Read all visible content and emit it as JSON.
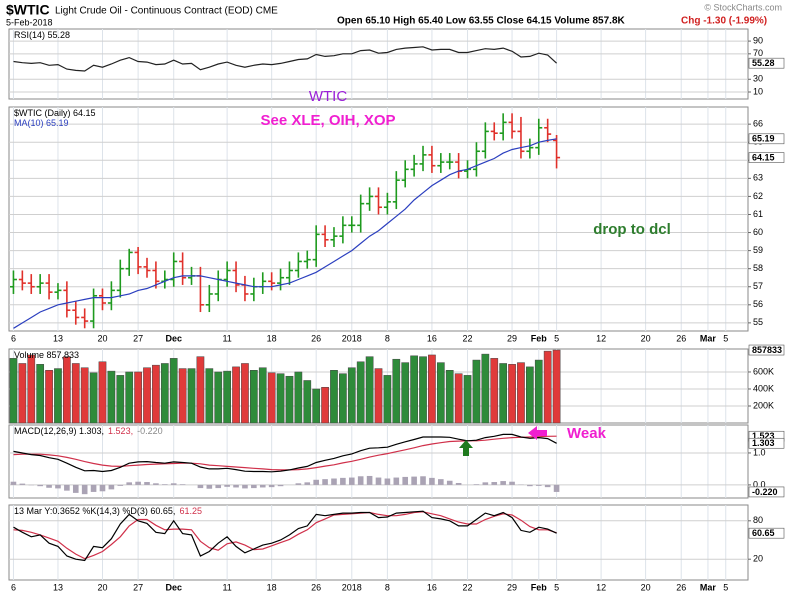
{
  "header": {
    "symbol": "$WTIC",
    "name": "Light Crude Oil - Continuous Contract (EOD) CME",
    "date": "5-Feb-2018",
    "quote": "Open 65.10  High 65.40  Low 63.55  Close 64.15  Volume 857.8K",
    "change": "Chg -1.30 (-1.99%)",
    "credit": "© StockCharts.com"
  },
  "annotations": {
    "title": "WTIC",
    "note": "See XLE, OIH, XOP",
    "comment": "drop to dcl",
    "macd_note": "Weak"
  },
  "chart_data": [
    {
      "type": "line",
      "legend": [
        {
          "text": "RSI(14) 55.28",
          "color": "#000"
        }
      ],
      "xlim": [
        -0.5,
        82.5
      ],
      "ylim": [
        -1,
        109
      ],
      "yticks": [
        10,
        30,
        70,
        90
      ],
      "tags": [
        55.28
      ],
      "series": [
        {
          "color": "#222",
          "values": [
            58,
            56,
            55,
            56,
            52,
            53,
            46,
            44,
            43,
            52,
            49,
            54,
            60,
            64,
            58,
            57,
            53,
            54,
            60,
            54,
            55,
            45,
            49,
            54,
            57,
            52,
            49,
            52,
            54,
            53,
            55,
            58,
            61,
            62,
            69,
            66,
            67,
            70,
            70,
            75,
            76,
            71,
            72,
            77,
            79,
            80,
            81,
            76,
            77,
            77,
            72,
            72,
            75,
            78,
            77,
            79,
            74,
            65,
            66,
            71,
            68,
            55.28
          ]
        }
      ]
    },
    {
      "type": "ohlc",
      "legend": [
        {
          "text": "$WTIC (Daily) 64.15",
          "color": "#000"
        },
        {
          "text": "MA(10) 65.19",
          "color": "#2b3fbf"
        }
      ],
      "xlim": [
        -0.5,
        82.5
      ],
      "ylim": [
        54.55,
        66.95
      ],
      "yticks": [
        55,
        56,
        57,
        58,
        59,
        60,
        61,
        62,
        63,
        64,
        65,
        66
      ],
      "tags": [
        65.19,
        64.15
      ],
      "up_color": "#1e9a1e",
      "down_color": "#e0302a",
      "xticks": [
        {
          "value": 0,
          "label": "6"
        },
        {
          "value": 5,
          "label": "13"
        },
        {
          "value": 10,
          "label": "20"
        },
        {
          "value": 14,
          "label": "27"
        },
        {
          "value": 18,
          "label": "Dec"
        },
        {
          "value": 24,
          "label": "11"
        },
        {
          "value": 29,
          "label": "18"
        },
        {
          "value": 34,
          "label": "26"
        },
        {
          "value": 38,
          "label": "2018"
        },
        {
          "value": 42,
          "label": "8"
        },
        {
          "value": 47,
          "label": "16"
        },
        {
          "value": 51,
          "label": "22"
        },
        {
          "value": 56,
          "label": "29"
        },
        {
          "value": 59,
          "label": "Feb"
        },
        {
          "value": 61,
          "label": "5"
        },
        {
          "value": 66,
          "label": "12"
        },
        {
          "value": 71,
          "label": "20"
        },
        {
          "value": 75,
          "label": "26"
        },
        {
          "value": 78,
          "label": "Mar"
        },
        {
          "value": 80,
          "label": "5"
        }
      ],
      "open": [
        57.0,
        57.4,
        57.2,
        57.0,
        57.2,
        56.7,
        56.8,
        55.7,
        55.3,
        55.1,
        56.5,
        56.1,
        56.8,
        58.0,
        58.9,
        58.1,
        57.9,
        57.3,
        57.4,
        58.4,
        57.5,
        57.6,
        56.0,
        56.6,
        57.4,
        57.9,
        57.1,
        56.6,
        57.0,
        57.3,
        57.2,
        57.5,
        57.9,
        58.4,
        58.5,
        59.9,
        59.6,
        59.8,
        60.4,
        60.4,
        61.6,
        62.0,
        61.4,
        61.7,
        62.9,
        63.5,
        63.8,
        64.3,
        63.7,
        63.9,
        63.9,
        63.4,
        63.5,
        64.5,
        65.6,
        65.5,
        66.1,
        65.6,
        64.5,
        64.7,
        65.8,
        65.1
      ],
      "high": [
        57.9,
        57.9,
        57.7,
        57.7,
        57.7,
        57.2,
        57.3,
        56.2,
        55.8,
        56.9,
        56.9,
        57.3,
        58.5,
        59.1,
        59.2,
        58.6,
        58.4,
        57.9,
        58.9,
        58.9,
        58.1,
        58.1,
        57.1,
        57.9,
        58.4,
        58.4,
        57.6,
        57.5,
        57.8,
        57.8,
        58.0,
        58.4,
        58.9,
        59.0,
        60.4,
        60.4,
        60.3,
        60.9,
        60.9,
        62.1,
        62.5,
        62.5,
        62.2,
        63.4,
        64.0,
        64.3,
        64.8,
        64.8,
        64.4,
        64.4,
        64.4,
        64.0,
        65.0,
        66.1,
        66.1,
        66.6,
        66.6,
        66.4,
        65.2,
        66.3,
        66.3,
        65.4
      ],
      "low": [
        56.6,
        56.8,
        56.6,
        56.6,
        56.3,
        56.3,
        55.3,
        54.9,
        54.7,
        54.7,
        55.7,
        55.7,
        56.4,
        57.6,
        57.7,
        57.5,
        56.9,
        56.9,
        57.0,
        57.1,
        57.1,
        55.6,
        55.6,
        56.2,
        57.0,
        56.7,
        56.2,
        56.2,
        56.6,
        56.8,
        56.8,
        57.1,
        57.5,
        58.0,
        58.1,
        59.2,
        59.2,
        59.4,
        60.0,
        60.0,
        61.2,
        61.0,
        61.0,
        61.3,
        62.5,
        63.1,
        63.4,
        63.3,
        63.3,
        63.5,
        63.0,
        63.0,
        63.1,
        64.1,
        65.1,
        65.1,
        65.2,
        64.1,
        64.1,
        64.3,
        65.0,
        63.55
      ],
      "close": [
        57.4,
        57.2,
        57.0,
        57.2,
        56.7,
        56.8,
        55.7,
        55.3,
        55.1,
        56.5,
        56.1,
        56.8,
        58.0,
        58.9,
        58.1,
        57.9,
        57.3,
        57.4,
        58.4,
        57.5,
        57.6,
        56.0,
        56.6,
        57.4,
        57.9,
        57.1,
        56.6,
        57.0,
        57.3,
        57.2,
        57.5,
        57.9,
        58.4,
        58.5,
        59.9,
        59.6,
        59.8,
        60.4,
        60.4,
        61.6,
        62.0,
        61.4,
        61.7,
        62.9,
        63.5,
        63.8,
        64.3,
        63.7,
        63.9,
        63.9,
        63.4,
        63.5,
        64.5,
        65.6,
        65.5,
        66.1,
        65.6,
        64.5,
        64.7,
        65.8,
        65.45,
        64.15
      ],
      "series": [
        {
          "color": "#2b3fbf",
          "values": [
            54.7,
            55.0,
            55.3,
            55.6,
            55.8,
            56.0,
            56.1,
            56.2,
            56.3,
            56.4,
            56.4,
            56.4,
            56.5,
            56.6,
            56.8,
            56.9,
            57.1,
            57.3,
            57.5,
            57.6,
            57.6,
            57.6,
            57.5,
            57.4,
            57.3,
            57.2,
            57.1,
            57.0,
            57.0,
            57.0,
            57.1,
            57.2,
            57.4,
            57.6,
            57.8,
            58.1,
            58.4,
            58.7,
            59.0,
            59.4,
            59.8,
            60.1,
            60.5,
            60.9,
            61.3,
            61.8,
            62.2,
            62.6,
            62.9,
            63.2,
            63.4,
            63.5,
            63.7,
            63.9,
            64.1,
            64.4,
            64.6,
            64.7,
            64.8,
            65.0,
            65.1,
            65.19
          ]
        }
      ]
    },
    {
      "type": "bar",
      "legend": [
        {
          "text": "Volume 857,833",
          "color": "#000"
        }
      ],
      "xlim": [
        -0.5,
        82.5
      ],
      "ylim": [
        0,
        870000
      ],
      "yticks": [
        {
          "value": 200000,
          "label": "200K"
        },
        {
          "value": 400000,
          "label": "400K"
        },
        {
          "value": 600000,
          "label": "600K"
        }
      ],
      "tags": [
        857833
      ],
      "up_color": "#2e8b3a",
      "down_color": "#e03a3a",
      "values": [
        760000,
        700000,
        800000,
        690000,
        620000,
        640000,
        780000,
        700000,
        650000,
        590000,
        720000,
        610000,
        560000,
        600000,
        600000,
        650000,
        680000,
        700000,
        760000,
        640000,
        640000,
        780000,
        640000,
        600000,
        610000,
        660000,
        700000,
        620000,
        650000,
        590000,
        580000,
        550000,
        600000,
        500000,
        400000,
        420000,
        620000,
        580000,
        650000,
        720000,
        780000,
        640000,
        560000,
        750000,
        710000,
        790000,
        780000,
        800000,
        710000,
        620000,
        580000,
        560000,
        740000,
        810000,
        760000,
        700000,
        690000,
        710000,
        660000,
        740000,
        845000,
        857833
      ]
    },
    {
      "type": "line",
      "legend": [
        {
          "text": "MACD(12,26,9) 1.303,",
          "color": "#000"
        },
        {
          "text": "1.523,",
          "color": "#d0304a"
        },
        {
          "text": "-0.220",
          "color": "#888"
        }
      ],
      "xlim": [
        -0.5,
        82.5
      ],
      "ylim": [
        -0.41,
        1.875
      ],
      "yticks": [
        {
          "value": 0,
          "label": "0.0"
        },
        {
          "value": 1,
          "label": "1.0"
        }
      ],
      "tags": [
        1.523,
        1.303,
        {
          "value": -0.22,
          "label": "-0.220"
        }
      ],
      "series": [
        {
          "type": "bar",
          "color": "#aaa3b4",
          "values": [
            0.1,
            0.04,
            -0.01,
            -0.04,
            -0.09,
            -0.11,
            -0.18,
            -0.25,
            -0.29,
            -0.22,
            -0.2,
            -0.14,
            -0.03,
            0.08,
            0.1,
            0.09,
            0.05,
            0.02,
            0.05,
            0.02,
            0,
            -0.1,
            -0.12,
            -0.1,
            -0.06,
            -0.08,
            -0.11,
            -0.1,
            -0.08,
            -0.07,
            -0.04,
            0,
            0.05,
            0.08,
            0.16,
            0.18,
            0.2,
            0.22,
            0.23,
            0.27,
            0.28,
            0.23,
            0.2,
            0.23,
            0.25,
            0.26,
            0.27,
            0.22,
            0.18,
            0.13,
            0.06,
            0,
            0.02,
            0.08,
            0.09,
            0.12,
            0.1,
            0.01,
            -0.04,
            -0.03,
            -0.07,
            -0.22
          ]
        },
        {
          "color": "#d0304a",
          "values": [
            0.95,
            0.96,
            0.96,
            0.96,
            0.94,
            0.91,
            0.86,
            0.8,
            0.73,
            0.67,
            0.62,
            0.59,
            0.58,
            0.6,
            0.62,
            0.64,
            0.65,
            0.66,
            0.67,
            0.68,
            0.68,
            0.66,
            0.62,
            0.6,
            0.58,
            0.56,
            0.54,
            0.52,
            0.5,
            0.48,
            0.47,
            0.47,
            0.48,
            0.5,
            0.54,
            0.59,
            0.63,
            0.69,
            0.74,
            0.8,
            0.87,
            0.93,
            0.98,
            1.04,
            1.1,
            1.16,
            1.23,
            1.28,
            1.32,
            1.36,
            1.37,
            1.38,
            1.38,
            1.4,
            1.43,
            1.46,
            1.48,
            1.49,
            1.5,
            1.51,
            1.52,
            1.523
          ]
        },
        {
          "color": "#000",
          "values": [
            1.05,
            1.0,
            0.95,
            0.92,
            0.85,
            0.8,
            0.68,
            0.55,
            0.44,
            0.45,
            0.42,
            0.45,
            0.55,
            0.68,
            0.72,
            0.73,
            0.7,
            0.68,
            0.72,
            0.7,
            0.68,
            0.56,
            0.5,
            0.5,
            0.52,
            0.48,
            0.43,
            0.42,
            0.42,
            0.41,
            0.43,
            0.47,
            0.53,
            0.58,
            0.7,
            0.77,
            0.83,
            0.91,
            0.97,
            1.07,
            1.15,
            1.16,
            1.18,
            1.27,
            1.35,
            1.42,
            1.5,
            1.5,
            1.5,
            1.49,
            1.43,
            1.38,
            1.4,
            1.48,
            1.52,
            1.58,
            1.58,
            1.5,
            1.46,
            1.48,
            1.45,
            1.303
          ]
        }
      ]
    },
    {
      "type": "line",
      "legend": [
        {
          "text": "13 Mar Y:0.3652  %K(14,3) %D(3) 60.65,",
          "color": "#000"
        },
        {
          "text": "61.25",
          "color": "#d0304a"
        }
      ],
      "xlim": [
        -0.5,
        82.5
      ],
      "ylim": [
        -12.5,
        104.7
      ],
      "yticks": [
        20,
        80
      ],
      "tags": [
        60.65
      ],
      "xticks": [
        {
          "value": 0,
          "label": "6"
        },
        {
          "value": 5,
          "label": "13"
        },
        {
          "value": 10,
          "label": "20"
        },
        {
          "value": 14,
          "label": "27"
        },
        {
          "value": 18,
          "label": "Dec"
        },
        {
          "value": 24,
          "label": "11"
        },
        {
          "value": 29,
          "label": "18"
        },
        {
          "value": 34,
          "label": "26"
        },
        {
          "value": 38,
          "label": "2018"
        },
        {
          "value": 42,
          "label": "8"
        },
        {
          "value": 47,
          "label": "16"
        },
        {
          "value": 51,
          "label": "22"
        },
        {
          "value": 56,
          "label": "29"
        },
        {
          "value": 59,
          "label": "Feb"
        },
        {
          "value": 61,
          "label": "5"
        },
        {
          "value": 66,
          "label": "12"
        },
        {
          "value": 71,
          "label": "20"
        },
        {
          "value": 75,
          "label": "26"
        },
        {
          "value": 78,
          "label": "Mar"
        },
        {
          "value": 80,
          "label": "5"
        }
      ],
      "series": [
        {
          "color": "#d0304a",
          "values": [
            66,
            65,
            62,
            58,
            53,
            48,
            37,
            28,
            21,
            26,
            32,
            43,
            55,
            72,
            82,
            82,
            73,
            66,
            67,
            67,
            66,
            48,
            38,
            34,
            44,
            47,
            42,
            35,
            36,
            41,
            46,
            51,
            59,
            66,
            77,
            83,
            89,
            90,
            91,
            92,
            93,
            90,
            88,
            88,
            90,
            93,
            94,
            91,
            88,
            83,
            78,
            75,
            75,
            82,
            87,
            91,
            89,
            81,
            71,
            66,
            66,
            61.25
          ]
        },
        {
          "color": "#000",
          "values": [
            70,
            62,
            55,
            58,
            45,
            40,
            25,
            20,
            18,
            40,
            38,
            52,
            75,
            90,
            80,
            76,
            62,
            60,
            80,
            60,
            58,
            25,
            32,
            45,
            55,
            40,
            30,
            36,
            42,
            45,
            50,
            58,
            68,
            72,
            90,
            88,
            90,
            92,
            92,
            93,
            93,
            85,
            86,
            92,
            93,
            94,
            95,
            85,
            83,
            80,
            72,
            72,
            82,
            92,
            88,
            93,
            85,
            65,
            62,
            70,
            67,
            60.65
          ]
        }
      ]
    }
  ]
}
